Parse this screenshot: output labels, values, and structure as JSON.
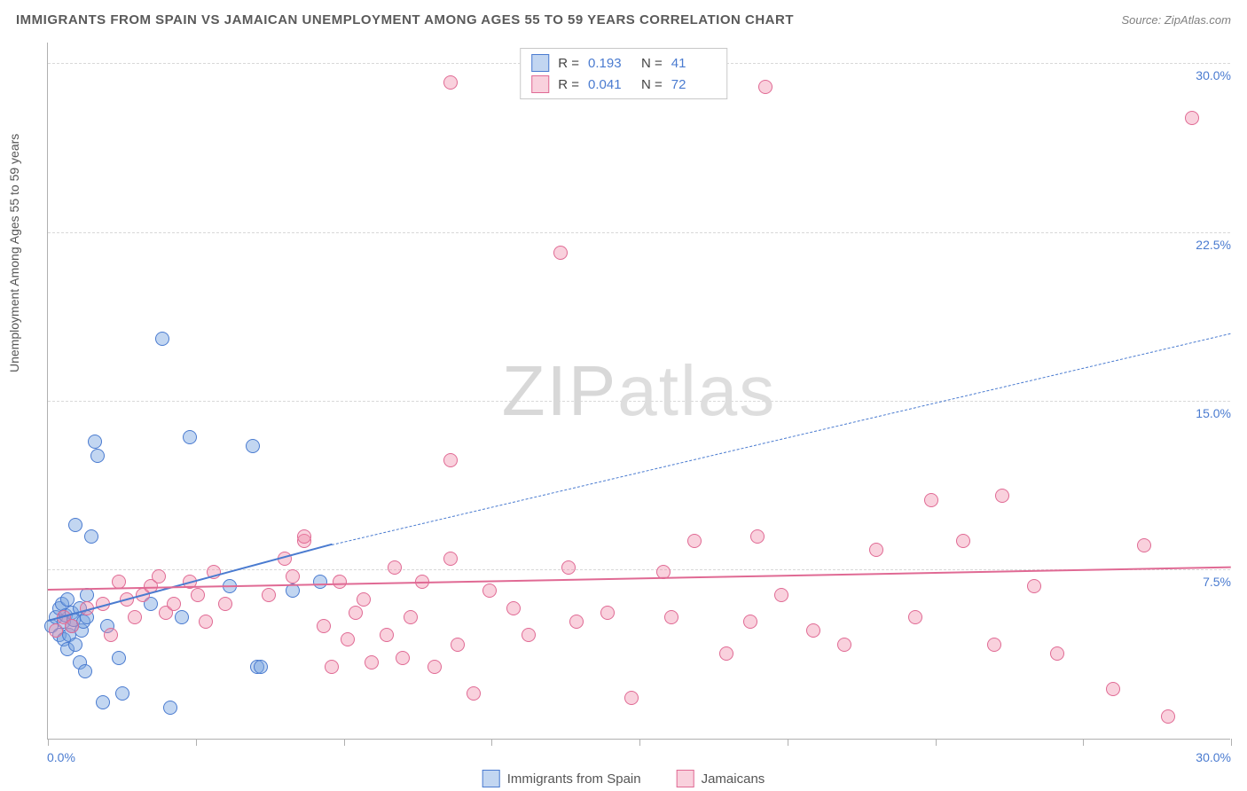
{
  "title": "IMMIGRANTS FROM SPAIN VS JAMAICAN UNEMPLOYMENT AMONG AGES 55 TO 59 YEARS CORRELATION CHART",
  "source_prefix": "Source: ",
  "source_link": "ZipAtlas.com",
  "ylabel": "Unemployment Among Ages 55 to 59 years",
  "watermark_a": "ZIP",
  "watermark_b": "atlas",
  "chart": {
    "type": "scatter",
    "xlim": [
      0,
      30
    ],
    "ylim": [
      0,
      31
    ],
    "x_min_label": "0.0%",
    "x_max_label": "30.0%",
    "y_ticks": [
      7.5,
      15.0,
      22.5,
      30.0
    ],
    "y_tick_labels": [
      "7.5%",
      "15.0%",
      "22.5%",
      "30.0%"
    ],
    "x_tick_positions": [
      0,
      3.75,
      7.5,
      11.25,
      15,
      18.75,
      22.5,
      26.25,
      30
    ],
    "grid_color": "#d8d8d8",
    "axis_color": "#b0b0b0",
    "value_color": "#4a7bd0",
    "background": "#ffffff",
    "point_radius": 8,
    "series": [
      {
        "name": "Immigrants from Spain",
        "color_fill": "rgba(120,165,225,0.45)",
        "color_stroke": "#4a7bd0",
        "R": "0.193",
        "N": "41",
        "trend": {
          "x1": 0,
          "y1": 5.2,
          "x2": 7.2,
          "y2": 8.6,
          "solid": true,
          "ext_x2": 30,
          "ext_y2": 18.0,
          "width": 2
        },
        "points": [
          [
            0.1,
            5.0
          ],
          [
            0.2,
            5.4
          ],
          [
            0.3,
            4.6
          ],
          [
            0.3,
            5.8
          ],
          [
            0.35,
            6.0
          ],
          [
            0.4,
            5.2
          ],
          [
            0.4,
            4.4
          ],
          [
            0.45,
            5.5
          ],
          [
            0.5,
            6.2
          ],
          [
            0.5,
            4.0
          ],
          [
            0.55,
            4.6
          ],
          [
            0.6,
            5.0
          ],
          [
            0.6,
            5.6
          ],
          [
            0.65,
            5.3
          ],
          [
            0.7,
            4.2
          ],
          [
            0.7,
            9.5
          ],
          [
            0.8,
            3.4
          ],
          [
            0.8,
            5.8
          ],
          [
            0.85,
            4.8
          ],
          [
            0.9,
            5.2
          ],
          [
            0.95,
            3.0
          ],
          [
            1.0,
            5.4
          ],
          [
            1.0,
            6.4
          ],
          [
            1.1,
            9.0
          ],
          [
            1.2,
            13.2
          ],
          [
            1.25,
            12.6
          ],
          [
            1.4,
            1.6
          ],
          [
            1.5,
            5.0
          ],
          [
            1.8,
            3.6
          ],
          [
            1.9,
            2.0
          ],
          [
            2.6,
            6.0
          ],
          [
            2.9,
            17.8
          ],
          [
            3.1,
            1.4
          ],
          [
            3.4,
            5.4
          ],
          [
            3.6,
            13.4
          ],
          [
            4.6,
            6.8
          ],
          [
            5.2,
            13.0
          ],
          [
            5.3,
            3.2
          ],
          [
            5.4,
            3.2
          ],
          [
            6.2,
            6.6
          ],
          [
            6.9,
            7.0
          ]
        ]
      },
      {
        "name": "Jamaicans",
        "color_fill": "rgba(240,140,170,0.40)",
        "color_stroke": "#e06a94",
        "R": "0.041",
        "N": "72",
        "trend": {
          "x1": 0,
          "y1": 6.6,
          "x2": 30,
          "y2": 7.6,
          "solid": true,
          "width": 2.5
        },
        "points": [
          [
            0.2,
            4.8
          ],
          [
            0.4,
            5.4
          ],
          [
            0.6,
            5.0
          ],
          [
            1.0,
            5.8
          ],
          [
            1.4,
            6.0
          ],
          [
            1.6,
            4.6
          ],
          [
            1.8,
            7.0
          ],
          [
            2.0,
            6.2
          ],
          [
            2.2,
            5.4
          ],
          [
            2.4,
            6.4
          ],
          [
            2.6,
            6.8
          ],
          [
            2.8,
            7.2
          ],
          [
            3.0,
            5.6
          ],
          [
            3.2,
            6.0
          ],
          [
            3.6,
            7.0
          ],
          [
            3.8,
            6.4
          ],
          [
            4.0,
            5.2
          ],
          [
            4.2,
            7.4
          ],
          [
            4.5,
            6.0
          ],
          [
            5.6,
            6.4
          ],
          [
            6.0,
            8.0
          ],
          [
            6.2,
            7.2
          ],
          [
            6.5,
            8.8
          ],
          [
            6.5,
            9.0
          ],
          [
            7.0,
            5.0
          ],
          [
            7.2,
            3.2
          ],
          [
            7.4,
            7.0
          ],
          [
            7.6,
            4.4
          ],
          [
            7.8,
            5.6
          ],
          [
            8.0,
            6.2
          ],
          [
            8.2,
            3.4
          ],
          [
            8.6,
            4.6
          ],
          [
            8.8,
            7.6
          ],
          [
            9.0,
            3.6
          ],
          [
            9.2,
            5.4
          ],
          [
            9.5,
            7.0
          ],
          [
            9.8,
            3.2
          ],
          [
            10.2,
            29.2
          ],
          [
            10.2,
            12.4
          ],
          [
            10.2,
            8.0
          ],
          [
            10.4,
            4.2
          ],
          [
            10.8,
            2.0
          ],
          [
            11.2,
            6.6
          ],
          [
            11.8,
            5.8
          ],
          [
            12.2,
            4.6
          ],
          [
            13.0,
            21.6
          ],
          [
            13.2,
            7.6
          ],
          [
            13.4,
            5.2
          ],
          [
            14.2,
            5.6
          ],
          [
            14.8,
            1.8
          ],
          [
            15.6,
            7.4
          ],
          [
            15.8,
            5.4
          ],
          [
            16.4,
            8.8
          ],
          [
            17.2,
            3.8
          ],
          [
            17.8,
            5.2
          ],
          [
            18.0,
            9.0
          ],
          [
            18.2,
            29.0
          ],
          [
            18.6,
            6.4
          ],
          [
            19.4,
            4.8
          ],
          [
            20.2,
            4.2
          ],
          [
            21.0,
            8.4
          ],
          [
            22.0,
            5.4
          ],
          [
            22.4,
            10.6
          ],
          [
            23.2,
            8.8
          ],
          [
            24.0,
            4.2
          ],
          [
            24.2,
            10.8
          ],
          [
            25.0,
            6.8
          ],
          [
            25.6,
            3.8
          ],
          [
            27.0,
            2.2
          ],
          [
            27.8,
            8.6
          ],
          [
            28.4,
            1.0
          ],
          [
            29.0,
            27.6
          ]
        ]
      }
    ]
  },
  "legend_stats_labels": {
    "R": "R  =",
    "N": "N  ="
  },
  "bottom_legend": [
    "Immigrants from Spain",
    "Jamaicans"
  ]
}
